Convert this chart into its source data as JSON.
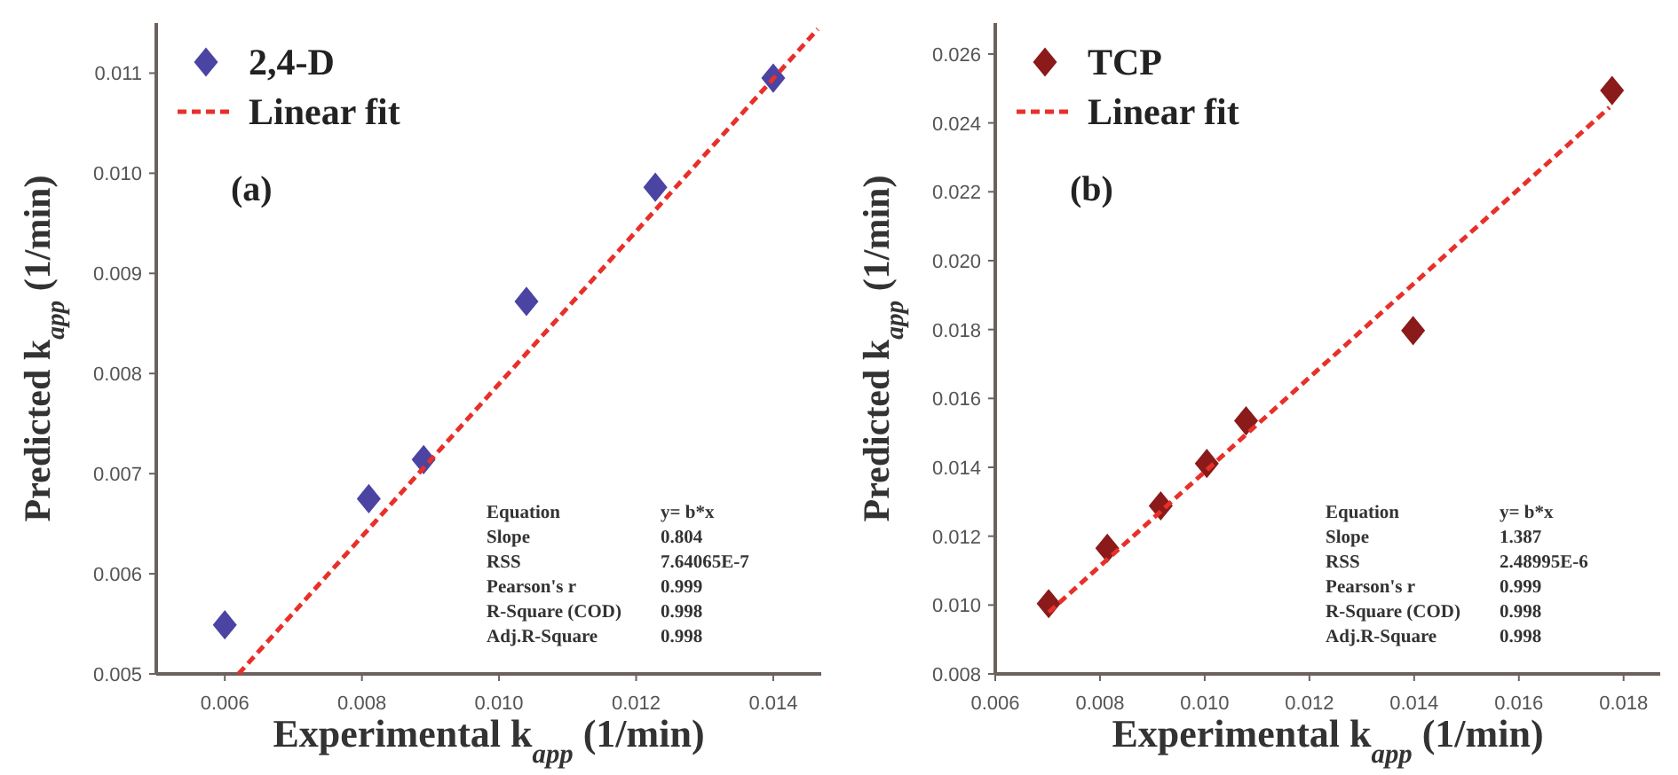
{
  "chart_data": [
    {
      "type": "scatter",
      "xlabel": "Experimental k$_{app}$ (1/min)",
      "ylabel": "Predicted k$_{app}$ (1/min)",
      "xlim": [
        0.005,
        0.0147
      ],
      "ylim": [
        0.005,
        0.0115
      ],
      "xticks": [
        {
          "value": 0.006,
          "label": "0.006"
        },
        {
          "value": 0.008,
          "label": "0.008"
        },
        {
          "value": 0.01,
          "label": "0.010"
        },
        {
          "value": 0.012,
          "label": "0.012"
        },
        {
          "value": 0.014,
          "label": "0.014"
        }
      ],
      "yticks": [
        {
          "value": 0.005,
          "label": "0.005"
        },
        {
          "value": 0.006,
          "label": "0.006"
        },
        {
          "value": 0.007,
          "label": "0.007"
        },
        {
          "value": 0.008,
          "label": "0.008"
        },
        {
          "value": 0.009,
          "label": "0.009"
        },
        {
          "value": 0.01,
          "label": "0.010"
        },
        {
          "value": 0.011,
          "label": "0.011"
        }
      ],
      "legend": "top left",
      "grid": false,
      "annotations": [
        "(a)",
        "Equation",
        "y= b*x",
        "Slope",
        "0.804",
        "RSS",
        "7.64065E-7",
        "Pearson's r",
        "0.999",
        "R-Square (COD)",
        "0.998",
        "Adj.R-Square",
        "0.998"
      ],
      "series": [
        {
          "name": "2,4-D",
          "marker": "diamond",
          "color": "#4b44a3",
          "x": [
            0.006,
            0.0081,
            0.0089,
            0.0104,
            0.01228,
            0.014
          ],
          "values": [
            0.00549,
            0.00675,
            0.00714,
            0.00872,
            0.00986,
            0.01095
          ]
        },
        {
          "name": "Linear fit",
          "type": "line",
          "line_style": "dashed",
          "marker": "none",
          "color": "#e8302a",
          "x": [
            0.0062,
            0.01465
          ],
          "values": [
            0.005,
            0.01144
          ]
        }
      ]
    },
    {
      "type": "scatter",
      "xlabel": "Experimental k$_{app}$ (1/min)",
      "ylabel": "Predicted k$_{app}$ (1/min)",
      "xlim": [
        0.006,
        0.0187
      ],
      "ylim": [
        0.008,
        0.0269
      ],
      "xticks": [
        {
          "value": 0.006,
          "label": "0.006"
        },
        {
          "value": 0.008,
          "label": "0.008"
        },
        {
          "value": 0.01,
          "label": "0.010"
        },
        {
          "value": 0.012,
          "label": "0.012"
        },
        {
          "value": 0.014,
          "label": "0.014"
        },
        {
          "value": 0.016,
          "label": "0.016"
        },
        {
          "value": 0.018,
          "label": "0.018"
        }
      ],
      "yticks": [
        {
          "value": 0.008,
          "label": "0.008"
        },
        {
          "value": 0.01,
          "label": "0.010"
        },
        {
          "value": 0.012,
          "label": "0.012"
        },
        {
          "value": 0.014,
          "label": "0.014"
        },
        {
          "value": 0.016,
          "label": "0.016"
        },
        {
          "value": 0.018,
          "label": "0.018"
        },
        {
          "value": 0.02,
          "label": "0.020"
        },
        {
          "value": 0.022,
          "label": "0.022"
        },
        {
          "value": 0.024,
          "label": "0.024"
        },
        {
          "value": 0.026,
          "label": "0.026"
        }
      ],
      "legend": "top left",
      "grid": false,
      "annotations": [
        "(b)",
        "Equation",
        "y= b*x",
        "Slope",
        "1.387",
        "RSS",
        "2.48995E-6",
        "Pearson's r",
        "0.999",
        "R-Square (COD)",
        "0.998",
        "Adj.R-Square",
        "0.998"
      ],
      "series": [
        {
          "name": "TCP",
          "marker": "diamond",
          "color": "#8b1a1a",
          "x": [
            0.00702,
            0.00814,
            0.00916,
            0.01004,
            0.01079,
            0.01398,
            0.01778
          ],
          "values": [
            0.01004,
            0.01165,
            0.01288,
            0.01411,
            0.01535,
            0.01797,
            0.02494
          ]
        },
        {
          "name": "Linear fit",
          "type": "line",
          "line_style": "dashed",
          "marker": "none",
          "color": "#e8302a",
          "x": [
            0.00702,
            0.01773
          ],
          "values": [
            0.00979,
            0.02445
          ]
        }
      ]
    }
  ]
}
